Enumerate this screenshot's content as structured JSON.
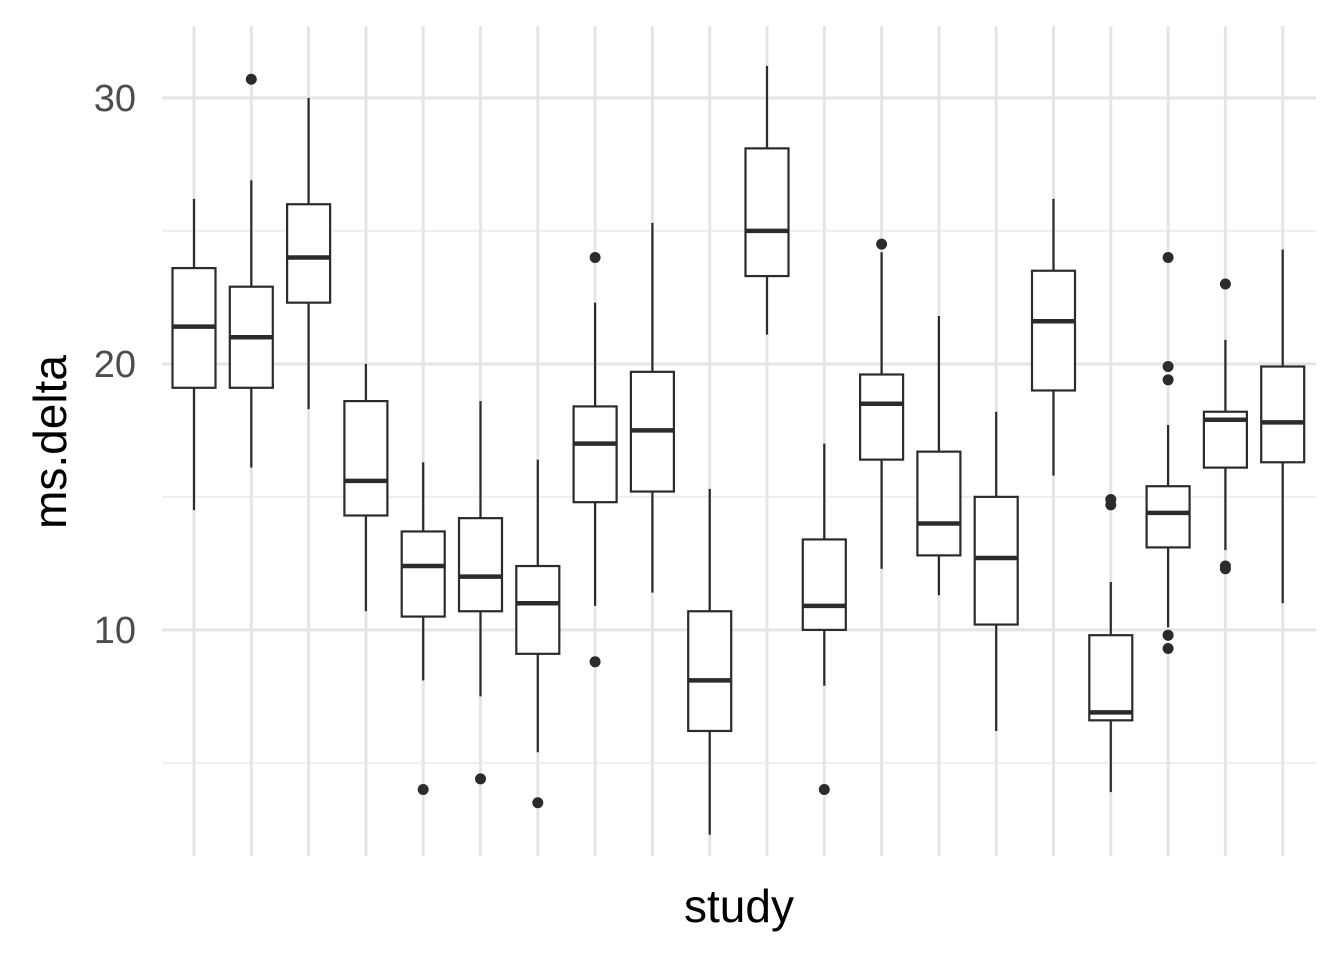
{
  "chart_data": {
    "type": "boxplot",
    "xlabel": "study",
    "ylabel": "ms.delta",
    "ylim": [
      1.5,
      32.7
    ],
    "yticks": [
      10,
      20,
      30
    ],
    "y_minor_ticks": [
      5,
      15,
      25
    ],
    "x_tick_labels_shown": false,
    "grid": true,
    "legend": "none",
    "colors": {
      "box_stroke": "#2b2b2b",
      "grid": "#e5e5e5",
      "box_fill": "#ffffff"
    },
    "boxes": [
      {
        "q1": 19.1,
        "median": 21.4,
        "q3": 23.6,
        "whisker_low": 14.5,
        "whisker_high": 26.2,
        "outliers": []
      },
      {
        "q1": 19.1,
        "median": 21.0,
        "q3": 22.9,
        "whisker_low": 16.1,
        "whisker_high": 26.9,
        "outliers": [
          30.7
        ]
      },
      {
        "q1": 22.3,
        "median": 24.0,
        "q3": 26.0,
        "whisker_low": 18.3,
        "whisker_high": 30.0,
        "outliers": []
      },
      {
        "q1": 14.3,
        "median": 15.6,
        "q3": 18.6,
        "whisker_low": 10.7,
        "whisker_high": 20.0,
        "outliers": []
      },
      {
        "q1": 10.5,
        "median": 12.4,
        "q3": 13.7,
        "whisker_low": 8.1,
        "whisker_high": 16.3,
        "outliers": [
          4.0
        ]
      },
      {
        "q1": 10.7,
        "median": 12.0,
        "q3": 14.2,
        "whisker_low": 7.5,
        "whisker_high": 18.6,
        "outliers": [
          4.4
        ]
      },
      {
        "q1": 9.1,
        "median": 11.0,
        "q3": 12.4,
        "whisker_low": 5.4,
        "whisker_high": 16.4,
        "outliers": [
          3.5
        ]
      },
      {
        "q1": 14.8,
        "median": 17.0,
        "q3": 18.4,
        "whisker_low": 10.9,
        "whisker_high": 22.3,
        "outliers": [
          24.0,
          8.8
        ]
      },
      {
        "q1": 15.2,
        "median": 17.5,
        "q3": 19.7,
        "whisker_low": 11.4,
        "whisker_high": 25.3,
        "outliers": []
      },
      {
        "q1": 6.2,
        "median": 8.1,
        "q3": 10.7,
        "whisker_low": 2.3,
        "whisker_high": 15.3,
        "outliers": []
      },
      {
        "q1": 23.3,
        "median": 25.0,
        "q3": 28.1,
        "whisker_low": 21.1,
        "whisker_high": 31.2,
        "outliers": []
      },
      {
        "q1": 10.0,
        "median": 10.9,
        "q3": 13.4,
        "whisker_low": 7.9,
        "whisker_high": 17.0,
        "outliers": [
          4.0
        ]
      },
      {
        "q1": 16.4,
        "median": 18.5,
        "q3": 19.6,
        "whisker_low": 12.3,
        "whisker_high": 24.2,
        "outliers": [
          24.5
        ]
      },
      {
        "q1": 12.8,
        "median": 14.0,
        "q3": 16.7,
        "whisker_low": 11.3,
        "whisker_high": 21.8,
        "outliers": []
      },
      {
        "q1": 10.2,
        "median": 12.7,
        "q3": 15.0,
        "whisker_low": 6.2,
        "whisker_high": 18.2,
        "outliers": []
      },
      {
        "q1": 19.0,
        "median": 21.6,
        "q3": 23.5,
        "whisker_low": 15.8,
        "whisker_high": 26.2,
        "outliers": []
      },
      {
        "q1": 6.6,
        "median": 6.9,
        "q3": 9.8,
        "whisker_low": 3.9,
        "whisker_high": 11.8,
        "outliers": [
          14.9,
          14.7
        ]
      },
      {
        "q1": 13.1,
        "median": 14.4,
        "q3": 15.4,
        "whisker_low": 10.1,
        "whisker_high": 17.7,
        "outliers": [
          24.0,
          19.9,
          19.4,
          9.8,
          9.3
        ]
      },
      {
        "q1": 16.1,
        "median": 17.9,
        "q3": 18.2,
        "whisker_low": 13.0,
        "whisker_high": 20.9,
        "outliers": [
          23.0,
          12.4,
          12.3
        ]
      },
      {
        "q1": 16.3,
        "median": 17.8,
        "q3": 19.9,
        "whisker_low": 11.0,
        "whisker_high": 24.3,
        "outliers": []
      }
    ]
  }
}
